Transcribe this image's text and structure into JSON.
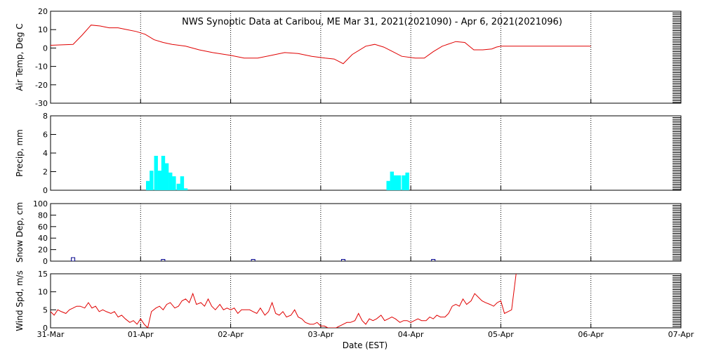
{
  "chart_data": {
    "title": "NWS Synoptic Data at Caribou, ME   Mar 31, 2021(2021090) - Apr  6, 2021(2021096)",
    "type": "line",
    "xlabel": "Date (EST)",
    "x_unit": "days since 31-Mar 00:00 EST",
    "x_range": [
      0,
      7
    ],
    "x_ticks": [
      "31-Mar",
      "01-Apr",
      "02-Apr",
      "03-Apr",
      "04-Apr",
      "05-Apr",
      "06-Apr",
      "07-Apr"
    ],
    "grid": "vertical dotted lines at each day",
    "panels": [
      {
        "id": "airtemp",
        "type": "line",
        "ylabel": "Air Temp, Deg C",
        "ylim": [
          -30,
          20
        ],
        "yticks": [
          20,
          10,
          0,
          -10,
          -20,
          -30
        ],
        "color": "#e00000",
        "x": [
          0.0,
          0.25,
          0.35,
          0.45,
          0.55,
          0.65,
          0.75,
          0.85,
          0.95,
          1.05,
          1.15,
          1.25,
          1.35,
          1.5,
          1.65,
          1.8,
          2.0,
          2.15,
          2.3,
          2.45,
          2.6,
          2.75,
          2.9,
          3.05,
          3.15,
          3.25,
          3.35,
          3.5,
          3.6,
          3.7,
          3.8,
          3.9,
          4.05,
          4.15,
          4.25,
          4.35,
          4.5,
          4.6,
          4.7,
          4.8,
          4.9,
          4.95,
          5.0,
          5.2,
          5.5,
          6.0
        ],
        "y": [
          1.5,
          2.0,
          7.0,
          12.5,
          12.0,
          11.0,
          11.0,
          10.0,
          9.0,
          7.5,
          4.5,
          3.0,
          2.0,
          1.0,
          -1.0,
          -2.5,
          -4.0,
          -5.5,
          -5.5,
          -4.0,
          -2.5,
          -3.0,
          -4.5,
          -5.5,
          -6.0,
          -8.5,
          -3.5,
          1.0,
          2.0,
          0.5,
          -2.0,
          -4.5,
          -5.5,
          -5.5,
          -2.0,
          1.0,
          3.5,
          3.0,
          -1.0,
          -1.0,
          -0.5,
          0.5,
          1.0,
          1.0,
          1.0,
          1.0
        ]
      },
      {
        "id": "precip",
        "type": "bar",
        "ylabel": "Precip, mm",
        "ylim": [
          0,
          8
        ],
        "yticks": [
          8,
          6,
          4,
          2,
          0
        ],
        "color": "#00ffff",
        "bar_width_days": 0.042,
        "x": [
          1.06,
          1.1,
          1.15,
          1.19,
          1.23,
          1.27,
          1.31,
          1.35,
          1.4,
          1.44,
          1.48,
          1.52,
          3.73,
          3.77,
          3.81,
          3.85,
          3.9,
          3.94
        ],
        "y": [
          1.0,
          2.1,
          3.7,
          2.1,
          3.7,
          2.9,
          1.9,
          1.5,
          0.7,
          1.5,
          0.2,
          0.0,
          1.0,
          2.0,
          1.6,
          1.6,
          1.6,
          1.9
        ]
      },
      {
        "id": "snowdep",
        "type": "scatter",
        "ylabel": "Snow Dep, cm",
        "ylim": [
          0,
          100
        ],
        "yticks": [
          100,
          80,
          60,
          40,
          20,
          0
        ],
        "color": "#00008b",
        "x": [
          0.25,
          1.25,
          2.25,
          3.25,
          4.25
        ],
        "y": [
          3,
          0,
          0,
          0,
          0
        ]
      },
      {
        "id": "windspd",
        "type": "line",
        "ylabel": "Wind Spd, m/s",
        "ylim": [
          0,
          15
        ],
        "yticks": [
          15,
          10,
          5,
          0
        ],
        "color": "#e00000",
        "x": [
          0.0,
          0.04,
          0.08,
          0.12,
          0.17,
          0.21,
          0.25,
          0.29,
          0.33,
          0.38,
          0.42,
          0.46,
          0.5,
          0.54,
          0.58,
          0.62,
          0.67,
          0.71,
          0.75,
          0.79,
          0.83,
          0.88,
          0.92,
          0.96,
          1.0,
          1.04,
          1.08,
          1.12,
          1.17,
          1.21,
          1.25,
          1.29,
          1.33,
          1.38,
          1.42,
          1.46,
          1.5,
          1.54,
          1.58,
          1.62,
          1.67,
          1.71,
          1.75,
          1.79,
          1.83,
          1.88,
          1.92,
          1.96,
          2.0,
          2.04,
          2.08,
          2.12,
          2.17,
          2.21,
          2.25,
          2.29,
          2.33,
          2.38,
          2.42,
          2.46,
          2.5,
          2.54,
          2.58,
          2.62,
          2.67,
          2.71,
          2.75,
          2.79,
          2.83,
          2.88,
          2.92,
          2.96,
          3.0,
          3.04,
          3.08,
          3.12,
          3.17,
          3.21,
          3.25,
          3.29,
          3.33,
          3.38,
          3.42,
          3.46,
          3.5,
          3.54,
          3.58,
          3.62,
          3.67,
          3.71,
          3.75,
          3.79,
          3.83,
          3.88,
          3.92,
          3.96,
          4.0,
          4.04,
          4.08,
          4.12,
          4.17,
          4.21,
          4.25,
          4.29,
          4.33,
          4.38,
          4.42,
          4.46,
          4.5,
          4.54,
          4.58,
          4.62,
          4.67,
          4.71,
          4.75,
          4.79,
          4.83,
          4.88,
          4.92,
          4.96,
          5.0,
          5.04,
          5.08,
          5.12,
          5.17
        ],
        "y": [
          4.5,
          3.5,
          5.0,
          4.5,
          4.0,
          5.0,
          5.5,
          6.0,
          6.0,
          5.5,
          7.0,
          5.5,
          6.0,
          4.5,
          5.0,
          4.5,
          4.0,
          4.5,
          3.0,
          3.5,
          2.5,
          1.5,
          2.0,
          1.0,
          2.5,
          1.0,
          0.0,
          4.5,
          5.5,
          6.0,
          5.0,
          6.5,
          7.0,
          5.5,
          6.0,
          7.5,
          8.0,
          7.0,
          9.5,
          6.5,
          7.0,
          6.0,
          8.0,
          6.0,
          5.0,
          6.5,
          5.0,
          5.5,
          5.0,
          5.5,
          4.0,
          5.0,
          5.0,
          5.0,
          4.5,
          4.0,
          5.5,
          3.5,
          4.5,
          7.0,
          4.0,
          3.5,
          4.5,
          3.0,
          3.5,
          5.0,
          3.0,
          2.5,
          1.5,
          1.0,
          1.0,
          1.5,
          0.5,
          0.5,
          0.0,
          0.0,
          0.0,
          0.5,
          1.0,
          1.5,
          1.5,
          2.0,
          4.0,
          2.0,
          1.0,
          2.5,
          2.0,
          2.5,
          3.5,
          2.0,
          2.5,
          3.0,
          2.5,
          1.5,
          2.0,
          2.0,
          1.5,
          2.0,
          2.5,
          2.0,
          2.0,
          3.0,
          2.5,
          3.5,
          3.0,
          3.0,
          4.0,
          6.0,
          6.5,
          6.0,
          8.0,
          6.5,
          7.5,
          9.5,
          8.5,
          7.5,
          7.0,
          6.5,
          6.0,
          7.0,
          7.5,
          4.0,
          4.5,
          5.0,
          15.0
        ]
      }
    ]
  }
}
